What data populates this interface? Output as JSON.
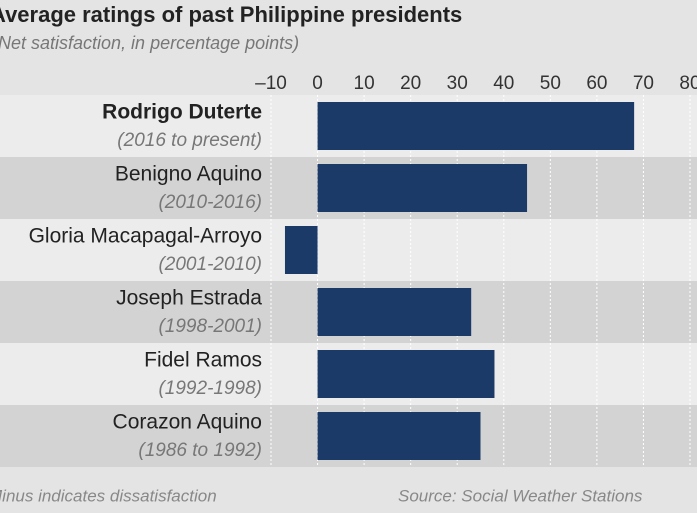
{
  "chart_data": {
    "type": "barh",
    "title": "Average ratings of past Philippine presidents",
    "subtitle": "(Net satisfaction, in percentage points)",
    "categories": [
      "Rodrigo Duterte",
      "Benigno Aquino",
      "Gloria Macapagal-Arroyo",
      "Joseph Estrada",
      "Fidel Ramos",
      "Corazon Aquino"
    ],
    "periods": [
      "(2016 to present)",
      "(2010-2016)",
      "(2001-2010)",
      "(1998-2001)",
      "(1992-1998)",
      "(1986 to 1992)"
    ],
    "values": [
      68,
      45,
      -7,
      33,
      38,
      35
    ],
    "color": "#1b3a68",
    "xlim": [
      -10,
      80
    ],
    "xticks": [
      {
        "value": -10,
        "label": "–10"
      },
      0,
      10,
      20,
      30,
      40,
      50,
      60,
      70,
      80
    ],
    "grid": true,
    "note": "Minus indicates dissatisfaction",
    "source": "Source: Social Weather Stations"
  }
}
